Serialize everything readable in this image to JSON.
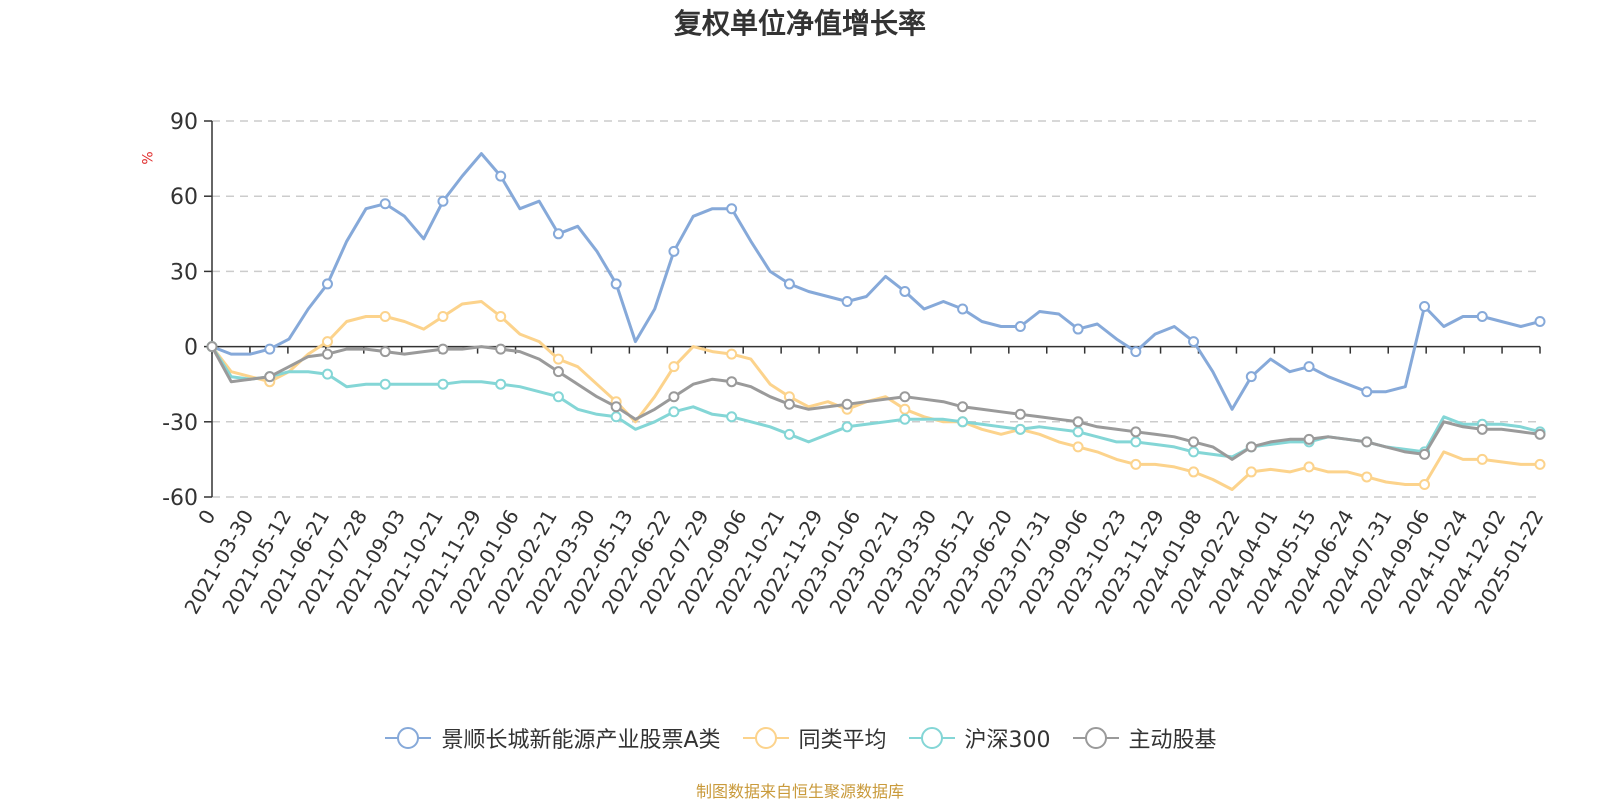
{
  "chart_data": {
    "type": "line",
    "title": "复权单位净值增长率",
    "ylabel": "%",
    "ylim": [
      -60,
      90
    ],
    "yticks": [
      90,
      60,
      30,
      0,
      -30,
      -60
    ],
    "grid": true,
    "legend_position": "bottom",
    "x_ticks": [
      "0",
      "2021-03-30",
      "2021-05-12",
      "2021-06-21",
      "2021-07-28",
      "2021-09-03",
      "2021-10-21",
      "2021-11-29",
      "2022-01-06",
      "2022-02-21",
      "2022-03-30",
      "2022-05-13",
      "2022-06-22",
      "2022-07-29",
      "2022-09-06",
      "2022-10-21",
      "2022-11-29",
      "2023-01-06",
      "2023-02-21",
      "2023-03-30",
      "2023-05-12",
      "2023-06-20",
      "2023-07-31",
      "2023-09-06",
      "2023-10-23",
      "2023-11-29",
      "2024-01-08",
      "2024-02-22",
      "2024-04-01",
      "2024-05-15",
      "2024-06-24",
      "2024-07-31",
      "2024-09-06",
      "2024-10-24",
      "2024-12-02",
      "2025-01-22"
    ],
    "series": [
      {
        "name": "景顺长城新能源产业股票A类",
        "color": "#86a9d9",
        "values": [
          0,
          -3,
          -3,
          -1,
          3,
          15,
          25,
          42,
          55,
          57,
          52,
          43,
          58,
          68,
          77,
          68,
          55,
          58,
          45,
          48,
          38,
          25,
          2,
          15,
          38,
          52,
          55,
          55,
          42,
          30,
          25,
          22,
          20,
          18,
          20,
          28,
          22,
          15,
          18,
          15,
          10,
          8,
          8,
          14,
          13,
          7,
          9,
          3,
          -2,
          5,
          8,
          2,
          -10,
          -25,
          -12,
          -5,
          -10,
          -8,
          -12,
          -15,
          -18,
          -18,
          -16,
          16,
          8,
          12,
          12,
          10,
          8,
          10
        ]
      },
      {
        "name": "同类平均",
        "color": "#fcd38c",
        "values": [
          0,
          -10,
          -12,
          -14,
          -10,
          -3,
          2,
          10,
          12,
          12,
          10,
          7,
          12,
          17,
          18,
          12,
          5,
          2,
          -5,
          -8,
          -15,
          -22,
          -30,
          -20,
          -8,
          0,
          -2,
          -3,
          -5,
          -15,
          -20,
          -24,
          -22,
          -25,
          -22,
          -20,
          -25,
          -28,
          -30,
          -30,
          -33,
          -35,
          -33,
          -35,
          -38,
          -40,
          -42,
          -45,
          -47,
          -47,
          -48,
          -50,
          -53,
          -57,
          -50,
          -49,
          -50,
          -48,
          -50,
          -50,
          -52,
          -54,
          -55,
          -55,
          -42,
          -45,
          -45,
          -46,
          -47,
          -47
        ]
      },
      {
        "name": "沪深300",
        "color": "#84d6d6",
        "values": [
          0,
          -12,
          -13,
          -12,
          -10,
          -10,
          -11,
          -16,
          -15,
          -15,
          -15,
          -15,
          -15,
          -14,
          -14,
          -15,
          -16,
          -18,
          -20,
          -25,
          -27,
          -28,
          -33,
          -30,
          -26,
          -24,
          -27,
          -28,
          -30,
          -32,
          -35,
          -38,
          -35,
          -32,
          -31,
          -30,
          -29,
          -29,
          -29,
          -30,
          -31,
          -32,
          -33,
          -32,
          -33,
          -34,
          -36,
          -38,
          -38,
          -39,
          -40,
          -42,
          -43,
          -44,
          -40,
          -39,
          -38,
          -38,
          -36,
          -37,
          -38,
          -40,
          -41,
          -42,
          -28,
          -31,
          -31,
          -31,
          -32,
          -34
        ]
      },
      {
        "name": "主动股基",
        "color": "#9a9a9a",
        "values": [
          0,
          -14,
          -13,
          -12,
          -8,
          -4,
          -3,
          -1,
          -1,
          -2,
          -3,
          -2,
          -1,
          -1,
          0,
          -1,
          -2,
          -5,
          -10,
          -15,
          -20,
          -24,
          -29,
          -25,
          -20,
          -15,
          -13,
          -14,
          -16,
          -20,
          -23,
          -25,
          -24,
          -23,
          -22,
          -21,
          -20,
          -21,
          -22,
          -24,
          -25,
          -26,
          -27,
          -28,
          -29,
          -30,
          -32,
          -33,
          -34,
          -35,
          -36,
          -38,
          -40,
          -45,
          -40,
          -38,
          -37,
          -37,
          -36,
          -37,
          -38,
          -40,
          -42,
          -43,
          -30,
          -32,
          -33,
          -33,
          -34,
          -35
        ]
      }
    ]
  },
  "source": "制图数据来自恒生聚源数据库",
  "source_color": "#c99a3b"
}
